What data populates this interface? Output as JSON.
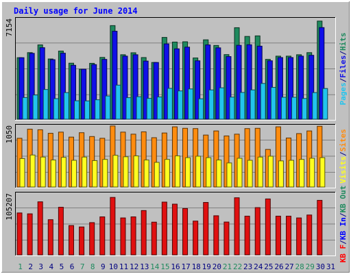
{
  "chart_data": {
    "type": "bar",
    "title": "Daily usage for June 2014",
    "colors": {
      "hits": "#1f8a5e",
      "files": "#1010e8",
      "pages": "#22c4ee",
      "visits": "#ffff20",
      "sites": "#ff8c0f",
      "kbin": "#e01010",
      "kbf_label": "#ff0000",
      "kbin_label": "#0000ff",
      "kbout_label": "#1f8a5e",
      "weekend": "#1f8a5e",
      "weekday": "#000080"
    },
    "days": [
      "1",
      "2",
      "3",
      "4",
      "5",
      "6",
      "7",
      "8",
      "9",
      "10",
      "11",
      "12",
      "13",
      "14",
      "15",
      "16",
      "17",
      "18",
      "19",
      "20",
      "21",
      "22",
      "23",
      "24",
      "25",
      "26",
      "27",
      "28",
      "29",
      "30",
      "31"
    ],
    "weekend_days": [
      "1",
      "7",
      "8",
      "14",
      "15",
      "21",
      "22",
      "28",
      "29"
    ],
    "panels": [
      {
        "id": "usage",
        "max_label": "7154",
        "ymax": 7154,
        "legend": [
          {
            "text": "Pages",
            "color": "#22c4ee"
          },
          {
            "text": "/",
            "color": "#000080"
          },
          {
            "text": "Files",
            "color": "#1010e8"
          },
          {
            "text": "/",
            "color": "#000080"
          },
          {
            "text": "Hits",
            "color": "#1f8a5e"
          }
        ],
        "series": [
          {
            "name": "Hits",
            "color": "#1f8a5e",
            "values": [
              4370,
              4730,
              5280,
              4280,
              4840,
              3980,
              3550,
              3970,
              4390,
              6650,
              4580,
              4720,
              4380,
              4030,
              5810,
              5480,
              5500,
              4350,
              5640,
              5240,
              4590,
              6500,
              5880,
              5920,
              4250,
              4480,
              4480,
              4580,
              4730,
              6970,
              null
            ]
          },
          {
            "name": "Files",
            "color": "#1010e8",
            "values": [
              4370,
              4680,
              5080,
              4230,
              4690,
              3830,
              3550,
              3880,
              4250,
              6250,
              4480,
              4580,
              4130,
              4030,
              5350,
              5000,
              5120,
              4150,
              5280,
              5070,
              4450,
              5250,
              5290,
              5190,
              4150,
              4380,
              4380,
              4480,
              4540,
              6510,
              null
            ]
          },
          {
            "name": "Pages",
            "color": "#22c4ee",
            "values": [
              1540,
              1720,
              2110,
              1460,
              1890,
              1310,
              1300,
              1380,
              1650,
              2420,
              1530,
              1600,
              1480,
              1580,
              2190,
              2010,
              2150,
              1450,
              2080,
              2230,
              1570,
              1900,
              2080,
              2540,
              2260,
              1560,
              1560,
              1470,
              1890,
              2180,
              null
            ]
          }
        ]
      },
      {
        "id": "sites",
        "max_label": "1050",
        "ymax": 1050,
        "legend": [
          {
            "text": "Visits",
            "color": "#ffff20"
          },
          {
            "text": "/",
            "color": "#000080"
          },
          {
            "text": "Sites",
            "color": "#ff8c0f"
          }
        ],
        "series": [
          {
            "name": "Sites",
            "color": "#ff8c0f",
            "values": [
              830,
              985,
              975,
              915,
              935,
              850,
              925,
              860,
              830,
              1040,
              935,
              900,
              940,
              840,
              920,
              1025,
              1000,
              995,
              885,
              955,
              870,
              900,
              995,
              1000,
              640,
              1025,
              835,
              910,
              955,
              1035,
              null
            ]
          },
          {
            "name": "Visits",
            "color": "#ffff20",
            "values": [
              485,
              545,
              510,
              460,
              505,
              455,
              510,
              450,
              470,
              540,
              515,
              530,
              460,
              420,
              470,
              530,
              500,
              525,
              500,
              460,
              410,
              490,
              455,
              510,
              525,
              445,
              455,
              470,
              490,
              500,
              null
            ]
          }
        ]
      },
      {
        "id": "kbytes",
        "max_label": "105207",
        "ymax": 105207,
        "legend": [
          {
            "text": "KB F",
            "color": "#ff0000"
          },
          {
            "text": "/",
            "color": "#000080"
          },
          {
            "text": "KB In",
            "color": "#0000ff"
          },
          {
            "text": "/",
            "color": "#000080"
          },
          {
            "text": "KB Out",
            "color": "#1f8a5e"
          }
        ],
        "series": [
          {
            "name": "KB In",
            "color": "#e01010",
            "values": [
              71500,
              70000,
              90500,
              60000,
              81200,
              50000,
              47600,
              55000,
              64800,
              98000,
              63000,
              64800,
              75600,
              55800,
              90000,
              86500,
              79000,
              57600,
              89400,
              66700,
              56000,
              97400,
              66000,
              80600,
              95400,
              66000,
              66000,
              63000,
              68000,
              93000,
              null
            ]
          }
        ]
      }
    ]
  }
}
